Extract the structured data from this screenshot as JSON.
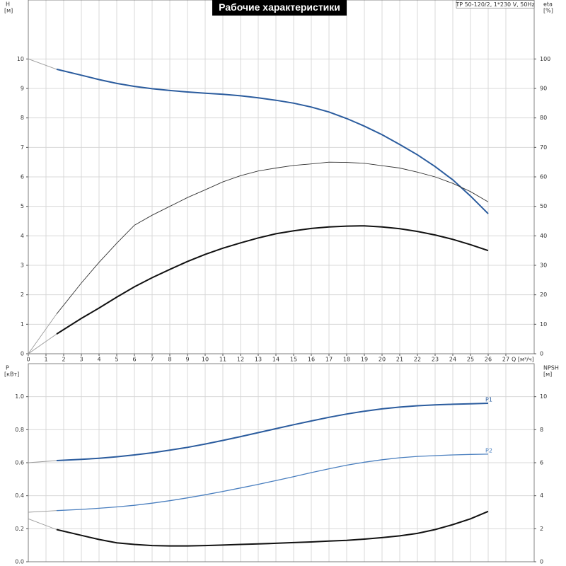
{
  "chart_data": [
    {
      "type": "line",
      "title": "Рабочие характеристики",
      "subtitle": "TP 50-120/2, 1*230 V, 50Hz",
      "ylabel": "H",
      "yunit": "[м]",
      "y2label": "eta",
      "y2unit": "[%]",
      "xlabel": "Q [м³/ч]",
      "x": [
        0,
        1.6,
        3,
        4,
        5,
        6,
        7,
        8,
        9,
        10,
        11,
        12,
        13,
        14,
        15,
        16,
        17,
        18,
        19,
        20,
        21,
        22,
        23,
        24,
        25,
        26
      ],
      "xlim": [
        0,
        28.6
      ],
      "xticks": [
        0,
        1,
        2,
        3,
        4,
        5,
        6,
        7,
        8,
        9,
        10,
        11,
        12,
        13,
        14,
        15,
        16,
        17,
        18,
        19,
        20,
        21,
        22,
        23,
        24,
        25,
        26,
        27
      ],
      "ylim": [
        0,
        12
      ],
      "yticks": [
        0,
        1,
        2,
        3,
        4,
        5,
        6,
        7,
        8,
        9,
        10
      ],
      "y2lim": [
        0,
        120
      ],
      "y2ticks": [
        0,
        10,
        20,
        30,
        40,
        50,
        60,
        70,
        80,
        90,
        100
      ],
      "grid": true,
      "extension_color": "#9a9a9a",
      "series": [
        {
          "color": "#2b5c9e",
          "weight": "bold",
          "values": [
            10.0,
            9.65,
            9.45,
            9.3,
            9.17,
            9.07,
            8.99,
            8.93,
            8.88,
            8.84,
            8.8,
            8.75,
            8.68,
            8.6,
            8.5,
            8.37,
            8.2,
            7.98,
            7.72,
            7.43,
            7.1,
            6.75,
            6.35,
            5.9,
            5.35,
            4.75
          ]
        },
        {
          "axis": "y2",
          "color": "#333333",
          "weight": "light",
          "values": [
            0,
            13.5,
            24,
            31,
            37.5,
            43.6,
            47,
            50,
            53,
            55.6,
            58.3,
            60.4,
            62,
            63,
            63.9,
            64.4,
            65,
            64.9,
            64.6,
            63.8,
            63,
            61.6,
            60,
            57.8,
            55,
            51.5
          ]
        },
        {
          "axis": "y2",
          "color": "#111111",
          "weight": "bold",
          "values": [
            0,
            6.7,
            12,
            15.5,
            19.2,
            22.7,
            25.8,
            28.6,
            31.3,
            33.7,
            35.8,
            37.6,
            39.3,
            40.7,
            41.7,
            42.5,
            43,
            43.3,
            43.4,
            43,
            42.4,
            41.5,
            40.3,
            38.8,
            37,
            35
          ]
        }
      ]
    },
    {
      "type": "line",
      "ylabel": "P",
      "yunit": "[кВт]",
      "y2label": "NPSH",
      "y2unit": "[м]",
      "x": [
        0,
        1.6,
        3,
        4,
        5,
        6,
        7,
        8,
        9,
        10,
        11,
        12,
        13,
        14,
        15,
        16,
        17,
        18,
        19,
        20,
        21,
        22,
        23,
        24,
        25,
        26
      ],
      "xlim": [
        0,
        28.6
      ],
      "ylim": [
        0,
        1.2
      ],
      "yticks": [
        {
          "value": 0,
          "label": "0.0"
        },
        0.2,
        0.4,
        0.6,
        0.8,
        {
          "value": 1,
          "label": "1.0"
        }
      ],
      "y2lim": [
        0,
        12
      ],
      "y2ticks": [
        0,
        2,
        4,
        6,
        8,
        10
      ],
      "grid": true,
      "extension_color": "#9a9a9a",
      "series": [
        {
          "name": "P1",
          "color": "#2b5c9e",
          "weight": "bold",
          "values": [
            0.6,
            0.613,
            0.62,
            0.627,
            0.636,
            0.647,
            0.66,
            0.676,
            0.693,
            0.713,
            0.735,
            0.758,
            0.782,
            0.806,
            0.83,
            0.853,
            0.875,
            0.895,
            0.912,
            0.926,
            0.937,
            0.945,
            0.95,
            0.954,
            0.957,
            0.96
          ]
        },
        {
          "name": "P2",
          "color": "#4a7fbf",
          "weight": "normal",
          "values": [
            0.3,
            0.31,
            0.317,
            0.324,
            0.332,
            0.342,
            0.355,
            0.37,
            0.387,
            0.406,
            0.426,
            0.447,
            0.469,
            0.492,
            0.515,
            0.54,
            0.563,
            0.585,
            0.603,
            0.618,
            0.63,
            0.638,
            0.643,
            0.647,
            0.65,
            0.652
          ]
        },
        {
          "axis": "y2",
          "color": "#111111",
          "weight": "bold",
          "values": [
            2.6,
            1.95,
            1.6,
            1.35,
            1.15,
            1.05,
            0.98,
            0.96,
            0.96,
            0.98,
            1.01,
            1.05,
            1.08,
            1.12,
            1.16,
            1.2,
            1.25,
            1.3,
            1.37,
            1.46,
            1.57,
            1.72,
            1.95,
            2.25,
            2.6,
            3.05
          ]
        }
      ]
    }
  ]
}
